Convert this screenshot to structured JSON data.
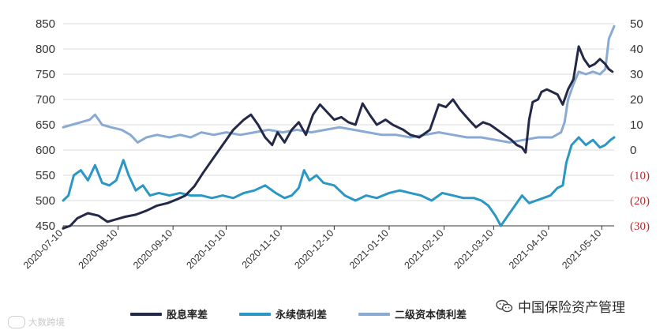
{
  "chart_data": {
    "type": "line",
    "title": "",
    "xlabel": "",
    "ylabel_left": "",
    "ylabel_right": "",
    "x": [
      "2020-07-10",
      "2020-08-10",
      "2020-09-10",
      "2020-10-10",
      "2020-11-10",
      "2020-12-10",
      "2021-01-10",
      "2021-02-10",
      "2021-03-10",
      "2021-04-10",
      "2021-05-10"
    ],
    "x_tick_labels": [
      "2020-07-10",
      "2020-08-10",
      "2020-09-10",
      "2020-10-10",
      "2020-11-10",
      "2020-12-10",
      "2021-01-10",
      "2021-02-10",
      "2021-03-10",
      "2021-04-10",
      "2021-05-10"
    ],
    "x_range": [
      "2020-07-10",
      "2021-05-17"
    ],
    "ylim_left": [
      450,
      850
    ],
    "ylim_right": [
      -30,
      50
    ],
    "y_tick_labels_left": [
      "850",
      "800",
      "750",
      "700",
      "650",
      "600",
      "550",
      "500",
      "450"
    ],
    "y_tick_labels_right": [
      "50",
      "40",
      "30",
      "20",
      "10",
      "0",
      "(10)",
      "(20)",
      "(30)"
    ],
    "grid": "horizontal",
    "legend_position": "bottom",
    "series": [
      {
        "name": "股息率差",
        "axis": "left",
        "color": "#232946",
        "points": [
          [
            "2020-07-10",
            445
          ],
          [
            "2020-07-14",
            450
          ],
          [
            "2020-07-18",
            465
          ],
          [
            "2020-07-24",
            475
          ],
          [
            "2020-07-30",
            470
          ],
          [
            "2020-08-04",
            458
          ],
          [
            "2020-08-08",
            462
          ],
          [
            "2020-08-14",
            468
          ],
          [
            "2020-08-20",
            472
          ],
          [
            "2020-08-26",
            480
          ],
          [
            "2020-09-01",
            490
          ],
          [
            "2020-09-07",
            495
          ],
          [
            "2020-09-12",
            502
          ],
          [
            "2020-09-17",
            510
          ],
          [
            "2020-09-22",
            528
          ],
          [
            "2020-09-27",
            555
          ],
          [
            "2020-10-02",
            580
          ],
          [
            "2020-10-06",
            600
          ],
          [
            "2020-10-10",
            620
          ],
          [
            "2020-10-14",
            640
          ],
          [
            "2020-10-20",
            660
          ],
          [
            "2020-10-24",
            670
          ],
          [
            "2020-10-28",
            650
          ],
          [
            "2020-11-01",
            625
          ],
          [
            "2020-11-05",
            610
          ],
          [
            "2020-11-08",
            635
          ],
          [
            "2020-11-12",
            615
          ],
          [
            "2020-11-16",
            640
          ],
          [
            "2020-11-20",
            655
          ],
          [
            "2020-11-24",
            630
          ],
          [
            "2020-11-28",
            670
          ],
          [
            "2020-12-02",
            690
          ],
          [
            "2020-12-06",
            675
          ],
          [
            "2020-12-10",
            660
          ],
          [
            "2020-12-14",
            665
          ],
          [
            "2020-12-18",
            655
          ],
          [
            "2020-12-22",
            650
          ],
          [
            "2020-12-26",
            692
          ],
          [
            "2020-12-30",
            670
          ],
          [
            "2021-01-03",
            650
          ],
          [
            "2021-01-08",
            660
          ],
          [
            "2021-01-12",
            650
          ],
          [
            "2021-01-18",
            640
          ],
          [
            "2021-01-22",
            630
          ],
          [
            "2021-01-27",
            625
          ],
          [
            "2021-02-02",
            640
          ],
          [
            "2021-02-07",
            690
          ],
          [
            "2021-02-11",
            685
          ],
          [
            "2021-02-15",
            700
          ],
          [
            "2021-02-19",
            680
          ],
          [
            "2021-02-24",
            660
          ],
          [
            "2021-02-28",
            645
          ],
          [
            "2021-03-04",
            655
          ],
          [
            "2021-03-08",
            650
          ],
          [
            "2021-03-12",
            640
          ],
          [
            "2021-03-16",
            630
          ],
          [
            "2021-03-20",
            620
          ],
          [
            "2021-03-23",
            610
          ],
          [
            "2021-03-26",
            605
          ],
          [
            "2021-03-28",
            595
          ],
          [
            "2021-03-30",
            660
          ],
          [
            "2021-04-01",
            695
          ],
          [
            "2021-04-04",
            700
          ],
          [
            "2021-04-06",
            715
          ],
          [
            "2021-04-09",
            720
          ],
          [
            "2021-04-12",
            715
          ],
          [
            "2021-04-15",
            710
          ],
          [
            "2021-04-18",
            690
          ],
          [
            "2021-04-21",
            720
          ],
          [
            "2021-04-24",
            740
          ],
          [
            "2021-04-27",
            805
          ],
          [
            "2021-04-30",
            780
          ],
          [
            "2021-05-03",
            765
          ],
          [
            "2021-05-06",
            770
          ],
          [
            "2021-05-09",
            780
          ],
          [
            "2021-05-12",
            770
          ],
          [
            "2021-05-14",
            760
          ],
          [
            "2021-05-16",
            755
          ]
        ]
      },
      {
        "name": "永续债利差",
        "axis": "right",
        "color": "#2a97c4",
        "points": [
          [
            "2020-07-10",
            -20
          ],
          [
            "2020-07-13",
            -18
          ],
          [
            "2020-07-16",
            -10
          ],
          [
            "2020-07-20",
            -8
          ],
          [
            "2020-07-24",
            -12
          ],
          [
            "2020-07-28",
            -6
          ],
          [
            "2020-08-01",
            -13
          ],
          [
            "2020-08-05",
            -14
          ],
          [
            "2020-08-09",
            -12
          ],
          [
            "2020-08-13",
            -4
          ],
          [
            "2020-08-16",
            -10
          ],
          [
            "2020-08-20",
            -16
          ],
          [
            "2020-08-24",
            -14
          ],
          [
            "2020-08-28",
            -18
          ],
          [
            "2020-09-02",
            -17
          ],
          [
            "2020-09-08",
            -18
          ],
          [
            "2020-09-14",
            -17
          ],
          [
            "2020-09-20",
            -18
          ],
          [
            "2020-09-26",
            -18
          ],
          [
            "2020-10-02",
            -19
          ],
          [
            "2020-10-08",
            -18
          ],
          [
            "2020-10-14",
            -19
          ],
          [
            "2020-10-20",
            -17
          ],
          [
            "2020-10-26",
            -16
          ],
          [
            "2020-11-01",
            -14
          ],
          [
            "2020-11-07",
            -17
          ],
          [
            "2020-11-12",
            -19
          ],
          [
            "2020-11-16",
            -18
          ],
          [
            "2020-11-20",
            -15
          ],
          [
            "2020-11-23",
            -8
          ],
          [
            "2020-11-26",
            -12
          ],
          [
            "2020-11-30",
            -10
          ],
          [
            "2020-12-04",
            -13
          ],
          [
            "2020-12-10",
            -14
          ],
          [
            "2020-12-16",
            -18
          ],
          [
            "2020-12-22",
            -20
          ],
          [
            "2020-12-28",
            -18
          ],
          [
            "2021-01-03",
            -19
          ],
          [
            "2021-01-10",
            -17
          ],
          [
            "2021-01-16",
            -16
          ],
          [
            "2021-01-22",
            -17
          ],
          [
            "2021-01-28",
            -18
          ],
          [
            "2021-02-03",
            -20
          ],
          [
            "2021-02-09",
            -17
          ],
          [
            "2021-02-15",
            -18
          ],
          [
            "2021-02-21",
            -19
          ],
          [
            "2021-02-27",
            -19
          ],
          [
            "2021-03-03",
            -20
          ],
          [
            "2021-03-07",
            -22
          ],
          [
            "2021-03-11",
            -26
          ],
          [
            "2021-03-14",
            -30
          ],
          [
            "2021-03-18",
            -26
          ],
          [
            "2021-03-22",
            -22
          ],
          [
            "2021-03-26",
            -18
          ],
          [
            "2021-03-30",
            -21
          ],
          [
            "2021-04-03",
            -20
          ],
          [
            "2021-04-07",
            -19
          ],
          [
            "2021-04-11",
            -18
          ],
          [
            "2021-04-15",
            -15
          ],
          [
            "2021-04-18",
            -14
          ],
          [
            "2021-04-20",
            -5
          ],
          [
            "2021-04-23",
            2
          ],
          [
            "2021-04-27",
            5
          ],
          [
            "2021-05-01",
            2
          ],
          [
            "2021-05-05",
            4
          ],
          [
            "2021-05-09",
            1
          ],
          [
            "2021-05-12",
            2
          ],
          [
            "2021-05-15",
            4
          ],
          [
            "2021-05-17",
            5
          ]
        ]
      },
      {
        "name": "二级资本债利差",
        "axis": "right",
        "color": "#89aad2",
        "points": [
          [
            "2020-07-10",
            9
          ],
          [
            "2020-07-15",
            10
          ],
          [
            "2020-07-20",
            11
          ],
          [
            "2020-07-25",
            12
          ],
          [
            "2020-07-28",
            14
          ],
          [
            "2020-08-01",
            10
          ],
          [
            "2020-08-06",
            9
          ],
          [
            "2020-08-12",
            8
          ],
          [
            "2020-08-17",
            6
          ],
          [
            "2020-08-21",
            3
          ],
          [
            "2020-08-26",
            5
          ],
          [
            "2020-09-01",
            6
          ],
          [
            "2020-09-08",
            5
          ],
          [
            "2020-09-14",
            6
          ],
          [
            "2020-09-20",
            5
          ],
          [
            "2020-09-26",
            7
          ],
          [
            "2020-10-03",
            6
          ],
          [
            "2020-10-10",
            7
          ],
          [
            "2020-10-18",
            6
          ],
          [
            "2020-10-26",
            7
          ],
          [
            "2020-11-03",
            8
          ],
          [
            "2020-11-11",
            7
          ],
          [
            "2020-11-19",
            8
          ],
          [
            "2020-11-27",
            7
          ],
          [
            "2020-12-05",
            8
          ],
          [
            "2020-12-13",
            9
          ],
          [
            "2020-12-21",
            8
          ],
          [
            "2020-12-29",
            7
          ],
          [
            "2021-01-06",
            6
          ],
          [
            "2021-01-14",
            6
          ],
          [
            "2021-01-22",
            5
          ],
          [
            "2021-01-30",
            6
          ],
          [
            "2021-02-07",
            7
          ],
          [
            "2021-02-15",
            6
          ],
          [
            "2021-02-23",
            5
          ],
          [
            "2021-03-03",
            5
          ],
          [
            "2021-03-11",
            4
          ],
          [
            "2021-03-19",
            3
          ],
          [
            "2021-03-27",
            4
          ],
          [
            "2021-04-04",
            5
          ],
          [
            "2021-04-12",
            5
          ],
          [
            "2021-04-17",
            7
          ],
          [
            "2021-04-19",
            11
          ],
          [
            "2021-04-21",
            20
          ],
          [
            "2021-04-24",
            26
          ],
          [
            "2021-04-27",
            31
          ],
          [
            "2021-05-01",
            30
          ],
          [
            "2021-05-05",
            31
          ],
          [
            "2021-05-09",
            30
          ],
          [
            "2021-05-12",
            32
          ],
          [
            "2021-05-14",
            44
          ],
          [
            "2021-05-17",
            49
          ]
        ]
      }
    ]
  },
  "watermarks": {
    "left_text": "大数跨境",
    "right_text": "中国保险资产管理"
  },
  "icons": [
    "brand-logo-icon",
    "wechat-icon"
  ]
}
